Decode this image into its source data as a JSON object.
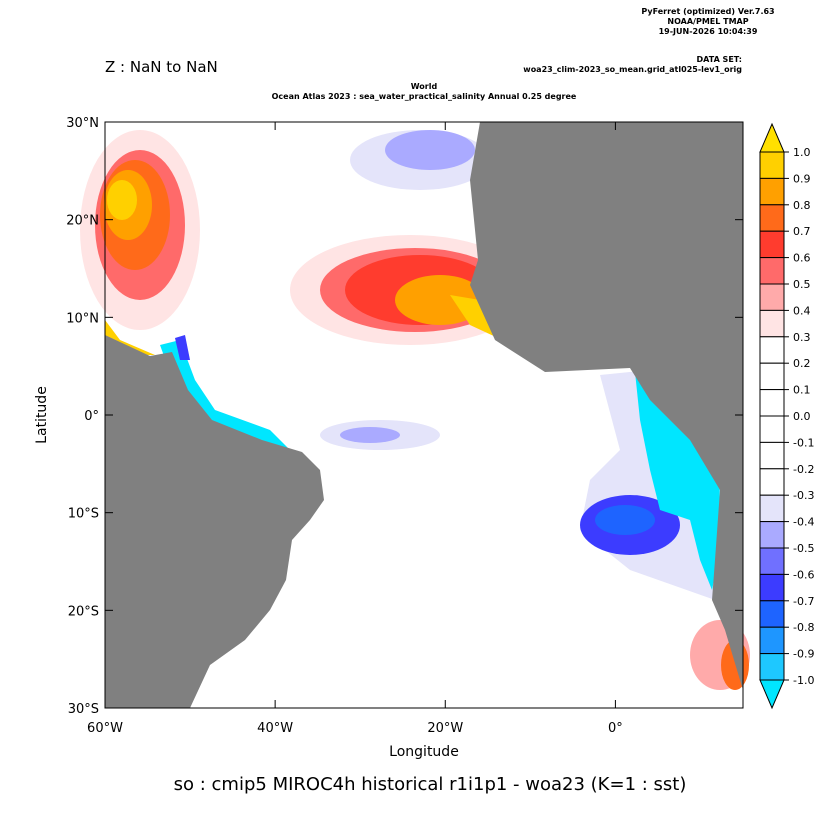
{
  "header": {
    "version": "PyFerret (optimized) Ver.7.63",
    "lab": "NOAA/PMEL TMAP",
    "date": "19-JUN-2026 10:04:39",
    "dataset_label": "DATA SET:",
    "dataset": "woa23_clim-2023_so_mean.grid_atl025-lev1_orig",
    "z": "Z : NaN to NaN",
    "title1": "World",
    "title2": "Ocean Atlas 2023 : sea_water_practical_salinity Annual  0.25 degree"
  },
  "map": {
    "xlabel": "Longitude",
    "ylabel": "Latitude",
    "xlim": [
      -60,
      15
    ],
    "ylim": [
      -30,
      30
    ],
    "xticks": [
      {
        "value": -60,
        "label": "60°W"
      },
      {
        "value": -40,
        "label": "40°W"
      },
      {
        "value": -20,
        "label": "20°W"
      },
      {
        "value": 0,
        "label": "0°"
      }
    ],
    "yticks": [
      {
        "value": 30,
        "label": "30°N"
      },
      {
        "value": 20,
        "label": "20°N"
      },
      {
        "value": 10,
        "label": "10°N"
      },
      {
        "value": 0,
        "label": "0°"
      },
      {
        "value": -10,
        "label": "10°S"
      },
      {
        "value": -20,
        "label": "20°S"
      },
      {
        "value": -30,
        "label": "30°S"
      }
    ]
  },
  "colorbar": {
    "levels": [
      {
        "value": 1.0,
        "label": "1.0"
      },
      {
        "value": 0.9,
        "label": "0.9"
      },
      {
        "value": 0.8,
        "label": "0.8"
      },
      {
        "value": 0.7,
        "label": "0.7"
      },
      {
        "value": 0.6,
        "label": "0.6"
      },
      {
        "value": 0.5,
        "label": "0.5"
      },
      {
        "value": 0.4,
        "label": "0.4"
      },
      {
        "value": 0.3,
        "label": "0.3"
      },
      {
        "value": 0.2,
        "label": "0.2"
      },
      {
        "value": 0.1,
        "label": "0.1"
      },
      {
        "value": 0.0,
        "label": "0.0"
      },
      {
        "value": -0.1,
        "label": "-0.1"
      },
      {
        "value": -0.2,
        "label": "-0.2"
      },
      {
        "value": -0.3,
        "label": "-0.3"
      },
      {
        "value": -0.4,
        "label": "-0.4"
      },
      {
        "value": -0.5,
        "label": "-0.5"
      },
      {
        "value": -0.6,
        "label": "-0.6"
      },
      {
        "value": -0.7,
        "label": "-0.7"
      },
      {
        "value": -0.8,
        "label": "-0.8"
      },
      {
        "value": -0.9,
        "label": "-0.9"
      },
      {
        "value": -1.0,
        "label": "-1.0"
      }
    ],
    "colors": [
      "#ffe000",
      "#ffd000",
      "#ffa000",
      "#ff6a1a",
      "#ff3c2e",
      "#ff6a6a",
      "#ffaaaa",
      "#ffe4e4",
      "#ffffff",
      "#ffffff",
      "#ffffff",
      "#ffffff",
      "#ffffff",
      "#ffffff",
      "#e4e4fa",
      "#aaaaff",
      "#7070ff",
      "#3c3cff",
      "#1e64ff",
      "#1e96ff",
      "#1ec8ff",
      "#00e6ff"
    ]
  },
  "footer": "so : cmip5 MIROC4h historical r1i1p1 - woa23  (K=1 : sst)"
}
